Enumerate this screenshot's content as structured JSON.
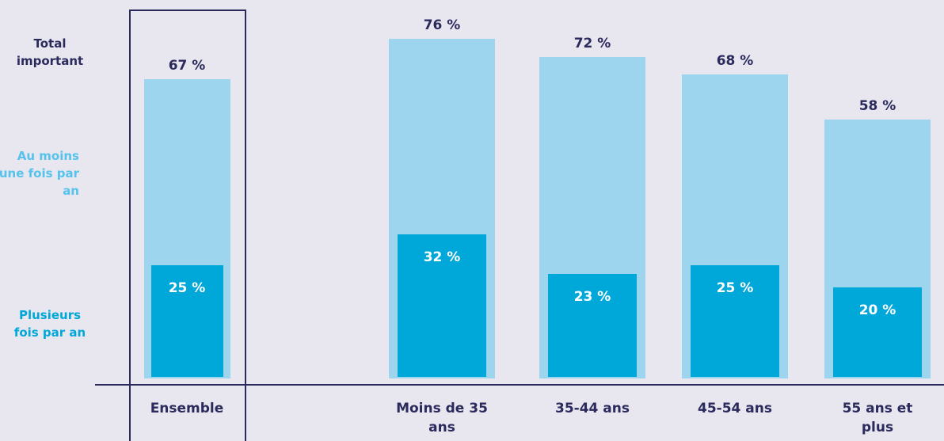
{
  "chart_data": {
    "type": "overlapping-bar",
    "total_label": "Total important",
    "categories": [
      "Ensemble",
      "Moins de 35 ans",
      "35-44 ans",
      "45-54 ans",
      "55 ans et plus"
    ],
    "series": [
      {
        "name": "Au moins une fois par an",
        "color": "#9dd5ef",
        "values": [
          67,
          76,
          72,
          68,
          58
        ],
        "value_labels": [
          "67 %",
          "76 %",
          "72 %",
          "68 %",
          "58 %"
        ]
      },
      {
        "name": "Plusieurs fois par an",
        "color": "#00a8d9",
        "values": [
          25,
          32,
          23,
          25,
          20
        ],
        "value_labels": [
          "25 %",
          "32 %",
          "23 %",
          "25 %",
          "20 %"
        ]
      }
    ]
  }
}
